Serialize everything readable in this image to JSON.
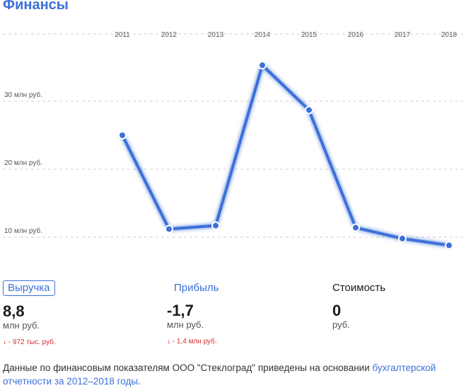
{
  "header": {
    "title": "Финансы"
  },
  "chart_data": {
    "type": "line",
    "title": "",
    "xlabel": "",
    "ylabel": "",
    "categories": [
      "2011",
      "2012",
      "2013",
      "2014",
      "2015",
      "2016",
      "2017",
      "2018"
    ],
    "series": [
      {
        "values": [
          25.0,
          11.2,
          11.7,
          35.3,
          28.7,
          11.4,
          9.8,
          8.8
        ]
      }
    ],
    "yticks": [
      10,
      20,
      30
    ],
    "ytick_labels": [
      "10 млн руб.",
      "20 млн руб.",
      "30 млн руб."
    ],
    "ylim": [
      5,
      40
    ],
    "grid": true,
    "line_color": "#3c6fd8"
  },
  "metrics": {
    "revenue": {
      "tab": "Выручка",
      "value": "8,8",
      "unit": "млн руб.",
      "change": "↓ - 972 тыс. руб."
    },
    "profit": {
      "tab": "Прибыль",
      "value": "-1,7",
      "unit": "млн руб.",
      "change": "↓ - 1,4 млн руб."
    },
    "cost": {
      "tab": "Стоимость",
      "value": "0",
      "unit": "руб."
    }
  },
  "footer": {
    "text": "Данные по финансовым показателям ООО \"Стеклоград\" приведены на основании ",
    "link": "бухгалтерской отчетности за 2012–2018 годы",
    "end": "."
  }
}
